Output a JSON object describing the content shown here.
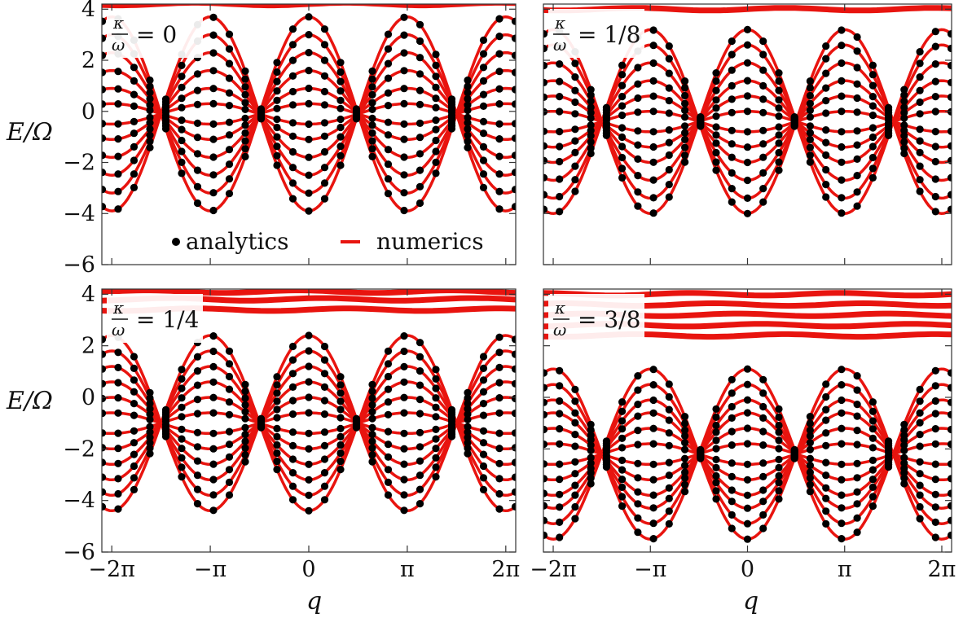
{
  "chart_data": [
    {
      "type": "line",
      "panel_label": "κ/ω = 0",
      "kappa_over_omega": "0",
      "ylabel": "E/Ω",
      "xlabel": "",
      "xticks": [
        "",
        "",
        "",
        "",
        ""
      ],
      "yticks": [
        "4",
        "2",
        "0",
        "−2",
        "−4",
        "−6"
      ],
      "xlim": [
        -6.6,
        6.6
      ],
      "ylim": [
        -6,
        4.2
      ],
      "legend": {
        "analytics": "analytics",
        "numerics": "numerics",
        "placement": "bottom-center"
      },
      "series": [
        {
          "role": "lower_band_amplitudes",
          "values": [
            -3.8,
            -3.1,
            -2.4,
            -1.7,
            -1.0,
            -0.4,
            0.4,
            1.0,
            1.7,
            2.4,
            3.1,
            3.8
          ]
        },
        {
          "role": "crossing_energy",
          "value": -0.1
        },
        {
          "role": "upper_flat_band",
          "values": [
            4.2
          ]
        }
      ]
    },
    {
      "type": "line",
      "panel_label": "κ/ω = 1/8",
      "kappa_over_omega": "1/8",
      "ylabel": "",
      "xlabel": "",
      "xticks": [
        "",
        "",
        "",
        "",
        ""
      ],
      "yticks": [
        "",
        "",
        "",
        "",
        "",
        ""
      ],
      "xlim": [
        -6.6,
        6.6
      ],
      "ylim": [
        -6,
        4.2
      ],
      "series": [
        {
          "role": "lower_band_amplitudes",
          "values": [
            -3.6,
            -3.0,
            -2.3,
            -1.6,
            -1.0,
            -0.4,
            0.4,
            1.0,
            1.6,
            2.3,
            3.0,
            3.6
          ]
        },
        {
          "role": "crossing_energy",
          "value": -0.4
        },
        {
          "role": "upper_flat_band",
          "values": [
            4.0
          ]
        }
      ]
    },
    {
      "type": "line",
      "panel_label": "κ/ω = 1/4",
      "kappa_over_omega": "1/4",
      "ylabel": "E/Ω",
      "xlabel": "q",
      "xticks": [
        "−2π",
        "−π",
        "0",
        "π",
        "2π"
      ],
      "yticks": [
        "4",
        "2",
        "0",
        "−2",
        "−4",
        "−6"
      ],
      "xlim": [
        -6.6,
        6.6
      ],
      "ylim": [
        -6,
        4.2
      ],
      "series": [
        {
          "role": "lower_band_amplitudes",
          "values": [
            -3.4,
            -2.8,
            -2.2,
            -1.6,
            -1.0,
            -0.4,
            0.4,
            1.0,
            1.6,
            2.2,
            2.8,
            3.4
          ]
        },
        {
          "role": "crossing_energy",
          "value": -1.0
        },
        {
          "role": "upper_flat_band",
          "values": [
            3.4,
            3.8,
            4.1
          ]
        }
      ]
    },
    {
      "type": "line",
      "panel_label": "κ/ω = 3/8",
      "kappa_over_omega": "3/8",
      "ylabel": "",
      "xlabel": "q",
      "xticks": [
        "−2π",
        "−π",
        "0",
        "π",
        "2π"
      ],
      "yticks": [
        "",
        "",
        "",
        "",
        "",
        ""
      ],
      "xlim": [
        -6.6,
        6.6
      ],
      "ylim": [
        -6,
        4.2
      ],
      "series": [
        {
          "role": "lower_band_amplitudes",
          "values": [
            -3.3,
            -2.7,
            -2.1,
            -1.6,
            -1.0,
            -0.4,
            0.4,
            1.0,
            1.6,
            2.1,
            2.7,
            3.3
          ]
        },
        {
          "role": "crossing_energy",
          "value": -2.2
        },
        {
          "role": "upper_flat_band",
          "values": [
            2.4,
            2.8,
            3.2,
            3.6,
            4.0
          ]
        }
      ]
    }
  ],
  "colors": {
    "numerics": "#e8140f",
    "analytics": "#000000",
    "frame": "#333333"
  }
}
